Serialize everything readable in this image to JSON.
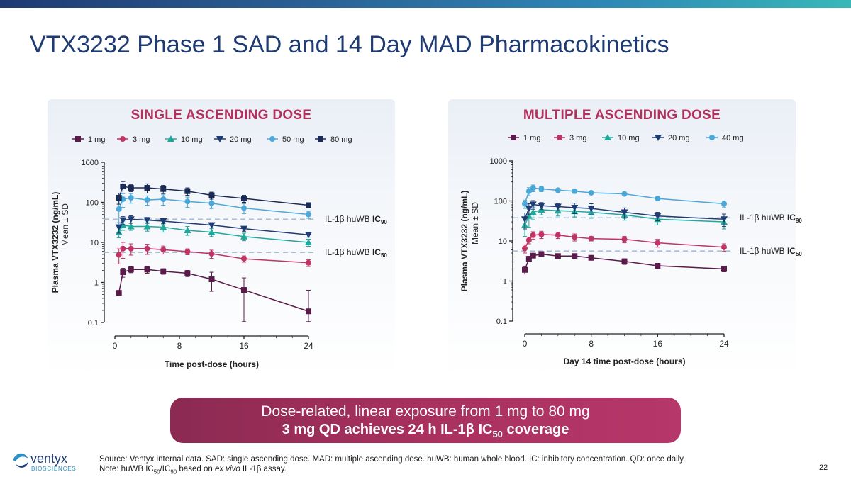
{
  "title": "VTX3232 Phase 1 SAD and 14 Day MAD Pharmacokinetics",
  "colors": {
    "title": "#1f3b73",
    "accent": "#b3305c",
    "banner": "#a8315e"
  },
  "charts": {
    "sad": {
      "title": "SINGLE ASCENDING DOSE"
    },
    "mad": {
      "title": "MULTIPLE ASCENDING DOSE"
    }
  },
  "chart_data": [
    {
      "id": "sad",
      "type": "line",
      "title": "SINGLE ASCENDING DOSE",
      "xlabel": "Time post-dose (hours)",
      "ylabel": "Plasma VTX3232 (ng/mL)",
      "ylabel2": "Mean ± SD",
      "yscale": "log",
      "ylim": [
        0.1,
        1000
      ],
      "yticks": [
        "1000",
        "100",
        "10",
        "1",
        "0.1"
      ],
      "xlim": [
        0,
        24
      ],
      "xticks": [
        "0",
        "8",
        "16",
        "24"
      ],
      "reference_lines": [
        {
          "value": 38,
          "label": "IL-1β huWB ",
          "label_bold": "IC",
          "sub": "90"
        },
        {
          "value": 5.6,
          "label": "IL-1β huWB ",
          "label_bold": "IC",
          "sub": "50"
        }
      ],
      "x": [
        0.5,
        1,
        2,
        4,
        6,
        9,
        12,
        16,
        24
      ],
      "series": [
        {
          "name": "1 mg",
          "color": "#5a1a4a",
          "marker": "square",
          "values": [
            0.55,
            1.8,
            2.1,
            2.1,
            1.9,
            1.7,
            1.2,
            0.65,
            0.19
          ],
          "err": [
            0.03,
            0.45,
            0.35,
            0.4,
            0.3,
            0.3,
            0.6,
            0.65,
            0.45
          ]
        },
        {
          "name": "3 mg",
          "color": "#c03464",
          "marker": "circle",
          "values": [
            4.9,
            7.0,
            7.0,
            7.0,
            6.6,
            5.9,
            5.2,
            3.9,
            3.1
          ],
          "err": [
            2.0,
            3.0,
            2.2,
            2.0,
            1.5,
            1.0,
            1.2,
            0.7,
            0.6
          ]
        },
        {
          "name": "10 mg",
          "color": "#1ea99a",
          "marker": "triangle-up",
          "values": [
            18,
            27,
            25,
            25,
            24,
            20,
            18,
            14,
            10
          ],
          "err": [
            5,
            7,
            5,
            6,
            6,
            5,
            4,
            3,
            2
          ]
        },
        {
          "name": "20 mg",
          "color": "#1f3b73",
          "marker": "triangle-down",
          "values": [
            24,
            36,
            38,
            36,
            34,
            null,
            27,
            22,
            15.5
          ],
          "err": [
            7,
            8,
            8,
            6,
            5,
            0,
            4,
            3,
            2
          ]
        },
        {
          "name": "50 mg",
          "color": "#4aa8d8",
          "marker": "circle",
          "values": [
            68,
            120,
            130,
            115,
            120,
            105,
            95,
            72,
            50
          ],
          "err": [
            40,
            45,
            35,
            30,
            35,
            30,
            25,
            20,
            10
          ]
        },
        {
          "name": "80 mg",
          "color": "#1a2a55",
          "marker": "square",
          "values": [
            130,
            250,
            230,
            230,
            215,
            190,
            150,
            125,
            85
          ],
          "err": [
            40,
            80,
            45,
            60,
            50,
            40,
            30,
            25,
            10
          ]
        }
      ]
    },
    {
      "id": "mad",
      "type": "line",
      "title": "MULTIPLE ASCENDING DOSE",
      "xlabel": "Day 14 time post-dose (hours)",
      "ylabel": "Plasma VTX3232 (ng/mL)",
      "ylabel2": "Mean ± SD",
      "yscale": "log",
      "ylim": [
        0.1,
        1000
      ],
      "yticks": [
        "1000",
        "100",
        "10",
        "1",
        "0.1"
      ],
      "xlim": [
        0,
        24
      ],
      "xticks": [
        "0",
        "8",
        "16",
        "24"
      ],
      "reference_lines": [
        {
          "value": 38,
          "label": "IL-1β huWB ",
          "label_bold": "IC",
          "sub": "90"
        },
        {
          "value": 5.6,
          "label": "IL-1β huWB ",
          "label_bold": "IC",
          "sub": "50"
        }
      ],
      "x": [
        0,
        0.5,
        1,
        2,
        4,
        6,
        8,
        12,
        16,
        24
      ],
      "series": [
        {
          "name": "1 mg",
          "color": "#5a1a4a",
          "marker": "square",
          "values": [
            1.9,
            3.6,
            4.3,
            4.7,
            4.2,
            4.2,
            3.8,
            3.1,
            2.4,
            2.0
          ],
          "err": [
            0.4,
            0.3,
            0.3,
            0.3,
            0.3,
            0.3,
            0.3,
            0.5,
            0.2,
            0.3
          ]
        },
        {
          "name": "3 mg",
          "color": "#c03464",
          "marker": "circle",
          "values": [
            6.5,
            10.5,
            14.0,
            14.5,
            14.0,
            12.5,
            11.5,
            11.0,
            9.0,
            7.0
          ],
          "err": [
            1.5,
            2.0,
            3.0,
            3.0,
            2.5,
            2.5,
            1.5,
            2.0,
            2.0,
            1.5
          ]
        },
        {
          "name": "10 mg",
          "color": "#1ea99a",
          "marker": "triangle-up",
          "values": [
            25,
            42,
            52,
            60,
            57,
            55,
            52,
            45,
            35,
            30
          ],
          "err": [
            12,
            20,
            18,
            15,
            15,
            15,
            15,
            12,
            10,
            10
          ]
        },
        {
          "name": "20 mg",
          "color": "#1f3b73",
          "marker": "triangle-down",
          "values": [
            35,
            65,
            82,
            76,
            72,
            68,
            65,
            52,
            42,
            35
          ],
          "err": [
            15,
            20,
            20,
            15,
            15,
            20,
            20,
            15,
            10,
            12
          ]
        },
        {
          "name": "40 mg",
          "color": "#4aa8d8",
          "marker": "circle",
          "values": [
            85,
            175,
            210,
            200,
            185,
            175,
            160,
            150,
            115,
            85
          ],
          "err": [
            20,
            40,
            40,
            30,
            20,
            20,
            15,
            15,
            15,
            15
          ]
        }
      ]
    }
  ],
  "banner": {
    "line1": "Dose-related, linear exposure from 1 mg to 80 mg",
    "line2_a": "3 mg QD achieves 24 h IL-1β IC",
    "line2_sub": "50",
    "line2_b": " coverage"
  },
  "logo": {
    "name": "ventyx",
    "sub": "BIOSCIENCES"
  },
  "footnote": {
    "line1": "Source: Ventyx internal data. SAD: single ascending dose. MAD: multiple ascending dose. huWB: human whole blood. IC: inhibitory concentration. QD: once daily.",
    "line2_a": "Note: huWB IC",
    "line2_sub1": "50",
    "line2_mid": "/IC",
    "line2_sub2": "90",
    "line2_b": " based on ",
    "line2_italic": "ex vivo",
    "line2_c": " IL-1β assay."
  },
  "page_number": "22"
}
